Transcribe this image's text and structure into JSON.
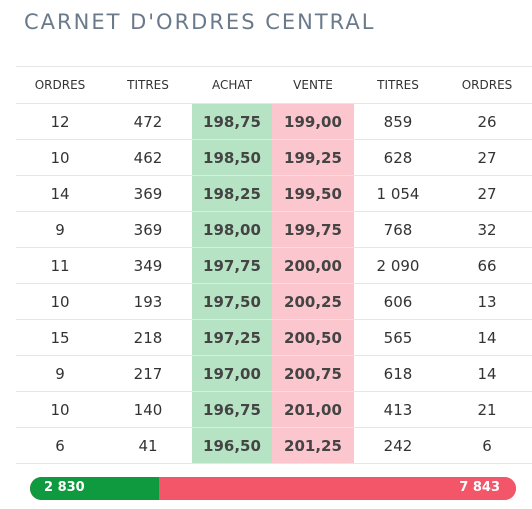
{
  "title": "CARNET D'ORDRES CENTRAL",
  "colors": {
    "buy": "#b6e3c4",
    "sell": "#fbc6cd",
    "bar_buy": "#0f9a3f",
    "bar_sell": "#f25668",
    "title": "#6a7a8a"
  },
  "columns": [
    "ORDRES",
    "TITRES",
    "ACHAT",
    "VENTE",
    "TITRES",
    "ORDRES"
  ],
  "rows": [
    [
      "12",
      "472",
      "198,75",
      "199,00",
      "859",
      "26"
    ],
    [
      "10",
      "462",
      "198,50",
      "199,25",
      "628",
      "27"
    ],
    [
      "14",
      "369",
      "198,25",
      "199,50",
      "1 054",
      "27"
    ],
    [
      "9",
      "369",
      "198,00",
      "199,75",
      "768",
      "32"
    ],
    [
      "11",
      "349",
      "197,75",
      "200,00",
      "2 090",
      "66"
    ],
    [
      "10",
      "193",
      "197,50",
      "200,25",
      "606",
      "13"
    ],
    [
      "15",
      "218",
      "197,25",
      "200,50",
      "565",
      "14"
    ],
    [
      "9",
      "217",
      "197,00",
      "200,75",
      "618",
      "14"
    ],
    [
      "10",
      "140",
      "196,75",
      "201,00",
      "413",
      "21"
    ],
    [
      "6",
      "41",
      "196,50",
      "201,25",
      "242",
      "6"
    ]
  ],
  "totals": {
    "buy": "2 830",
    "sell": "7 843",
    "buy_share": 0.2651
  }
}
